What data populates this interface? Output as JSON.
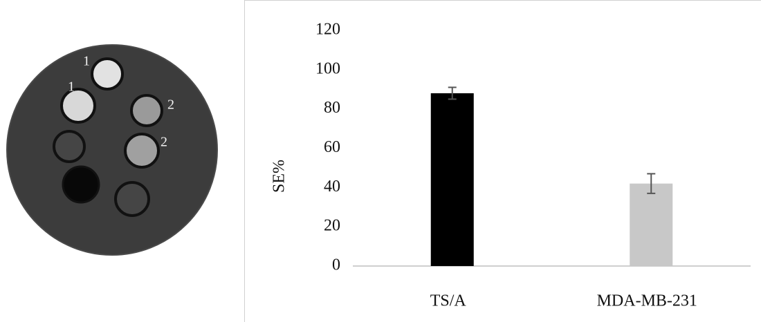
{
  "image": {
    "labels": [
      "1",
      "1",
      "2",
      "2"
    ]
  },
  "chart_data": {
    "type": "bar",
    "y_label": "SE%",
    "categories": [
      "TS/A",
      "MDA-MB-231"
    ],
    "values": [
      88,
      42
    ],
    "errors": [
      3,
      5
    ],
    "colors": [
      "#000000",
      "#c8c8c8"
    ],
    "ylim": [
      0,
      120
    ],
    "yticks": [
      0,
      20,
      40,
      60,
      80,
      100,
      120
    ],
    "grid": false
  }
}
